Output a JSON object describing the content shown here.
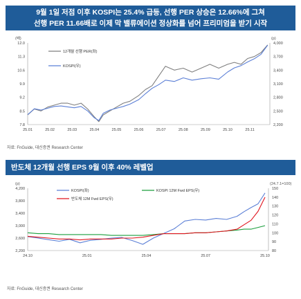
{
  "header1": {
    "line1": "9월 1일 저점 이후 KOSPI는 25.4% 급등, 선행 PER 상승은 12.66%에 그쳐",
    "line2": "선행 PER 11.66배로 이제 막 밸류에이션 정상화를 넘어 프리미엄을 받기 시작"
  },
  "source1": "자료: FnGuide, 대신증권 Research Center",
  "header2": {
    "title": "반도체 12개월 선행 EPS 9월 이후 40% 레벨업"
  },
  "source2": "자료: FnGuide, 대신증권 Research Center",
  "colors": {
    "header_bg": "#1f5c99",
    "per_line": "#7f7f7f",
    "kospi_line": "#5b7fd6",
    "eps_line": "#e0141e",
    "fwd_eps_line": "#1a9e3c"
  },
  "chart_data": [
    {
      "type": "line",
      "title": "",
      "left_unit": "(배)",
      "right_unit": "(p)",
      "x_ticks": [
        "25.01",
        "25.02",
        "25.03",
        "25.04",
        "25.05",
        "25.06",
        "25.07",
        "25.08",
        "25.09",
        "25.10",
        "25.11"
      ],
      "xlim": [
        0,
        10.9
      ],
      "y_left": {
        "lim": [
          7.8,
          12.0
        ],
        "ticks": [
          "12.0",
          "11.3",
          "10.6",
          "9.9",
          "9.2",
          "8.5",
          "7.8"
        ]
      },
      "y_right": {
        "lim": [
          2200,
          4000
        ],
        "ticks": [
          "4,000",
          "3,700",
          "3,400",
          "3,100",
          "2,800",
          "2,500",
          "2,200"
        ]
      },
      "legend_position": "top-left",
      "series": [
        {
          "name": "12개월 선행 PER(좌)",
          "axis": "left",
          "x": [
            0,
            0.3,
            0.6,
            0.9,
            1.2,
            1.5,
            1.8,
            2.1,
            2.4,
            2.7,
            3.0,
            3.2,
            3.4,
            3.7,
            4.0,
            4.3,
            4.6,
            5.0,
            5.3,
            5.6,
            5.9,
            6.2,
            6.6,
            7.0,
            7.4,
            7.8,
            8.2,
            8.6,
            9.0,
            9.3,
            9.6,
            9.9,
            10.2,
            10.5,
            10.8
          ],
          "y": [
            8.3,
            8.6,
            8.5,
            8.7,
            8.8,
            8.9,
            8.9,
            8.8,
            8.9,
            8.6,
            8.2,
            7.95,
            8.3,
            8.5,
            8.7,
            8.9,
            9.0,
            9.3,
            9.6,
            9.8,
            10.3,
            10.8,
            10.6,
            10.7,
            10.5,
            10.7,
            10.9,
            10.7,
            10.9,
            11.0,
            10.9,
            11.2,
            11.3,
            11.5,
            11.9
          ]
        },
        {
          "name": "KOSPI(우)",
          "axis": "right",
          "x": [
            0,
            0.3,
            0.6,
            0.9,
            1.2,
            1.5,
            1.8,
            2.1,
            2.4,
            2.7,
            3.0,
            3.2,
            3.4,
            3.7,
            4.0,
            4.3,
            4.6,
            5.0,
            5.3,
            5.6,
            5.9,
            6.2,
            6.6,
            7.0,
            7.4,
            7.8,
            8.2,
            8.6,
            9.0,
            9.3,
            9.6,
            9.9,
            10.2,
            10.5,
            10.8
          ],
          "y": [
            2420,
            2550,
            2520,
            2560,
            2600,
            2610,
            2590,
            2570,
            2600,
            2500,
            2350,
            2290,
            2450,
            2520,
            2560,
            2600,
            2650,
            2750,
            2880,
            3000,
            3080,
            3180,
            3150,
            3230,
            3180,
            3210,
            3230,
            3200,
            3360,
            3450,
            3500,
            3580,
            3650,
            3750,
            3950
          ]
        }
      ]
    },
    {
      "type": "line",
      "title": "",
      "left_unit": "(p)",
      "right_unit": "(24.7.1=100)",
      "x_ticks": [
        "24.10",
        "25.01",
        "25.04",
        "25.07",
        "25.10"
      ],
      "xlim": [
        0,
        13.8
      ],
      "y_left": {
        "lim": [
          2200,
          4200
        ],
        "ticks": [
          "4,200",
          "3,800",
          "3,400",
          "3,000",
          "2,600",
          "2,200"
        ]
      },
      "y_right": {
        "lim": [
          80,
          150
        ],
        "ticks": [
          "150",
          "140",
          "130",
          "120",
          "110",
          "100",
          "90",
          "80"
        ]
      },
      "legend_position": "top-left",
      "series": [
        {
          "name": "KOSPI(좌)",
          "axis": "left",
          "x": [
            0,
            0.6,
            1.2,
            1.8,
            2.4,
            3.0,
            3.6,
            4.2,
            4.8,
            5.4,
            6.0,
            6.6,
            7.2,
            7.8,
            8.4,
            9.0,
            9.6,
            10.2,
            10.8,
            11.4,
            12.0,
            12.4,
            12.8,
            13.2,
            13.6
          ],
          "y": [
            2650,
            2600,
            2550,
            2500,
            2560,
            2450,
            2530,
            2560,
            2600,
            2620,
            2520,
            2400,
            2600,
            2750,
            2900,
            3150,
            3200,
            3180,
            3230,
            3200,
            3300,
            3450,
            3580,
            3700,
            4050
          ]
        },
        {
          "name": "KOSPI 12M Fwd EPS(우)",
          "axis": "right",
          "x": [
            0,
            0.6,
            1.2,
            1.8,
            2.4,
            3.0,
            3.6,
            4.2,
            4.8,
            5.4,
            6.0,
            6.6,
            7.2,
            7.8,
            8.4,
            9.0,
            9.6,
            10.2,
            10.8,
            11.4,
            12.0,
            12.4,
            12.8,
            13.2,
            13.6
          ],
          "y": [
            100,
            99,
            99,
            98,
            98,
            98,
            98,
            98,
            97,
            97,
            97,
            97,
            98,
            99,
            99,
            99,
            100,
            100,
            101,
            102,
            103,
            104,
            104,
            106,
            108
          ]
        },
        {
          "name": "반도체 12M Fwd EPS(우)",
          "axis": "right",
          "x": [
            0,
            0.6,
            1.2,
            1.8,
            2.4,
            3.0,
            3.6,
            4.2,
            4.8,
            5.4,
            6.0,
            6.6,
            7.2,
            7.8,
            8.4,
            9.0,
            9.6,
            10.2,
            10.8,
            11.4,
            12.0,
            12.4,
            12.8,
            13.2,
            13.6
          ],
          "y": [
            96,
            95,
            94,
            93,
            93,
            92,
            93,
            93,
            93,
            94,
            94,
            95,
            97,
            99,
            99,
            99,
            100,
            100,
            101,
            102,
            104,
            109,
            114,
            124,
            140
          ]
        }
      ]
    }
  ]
}
